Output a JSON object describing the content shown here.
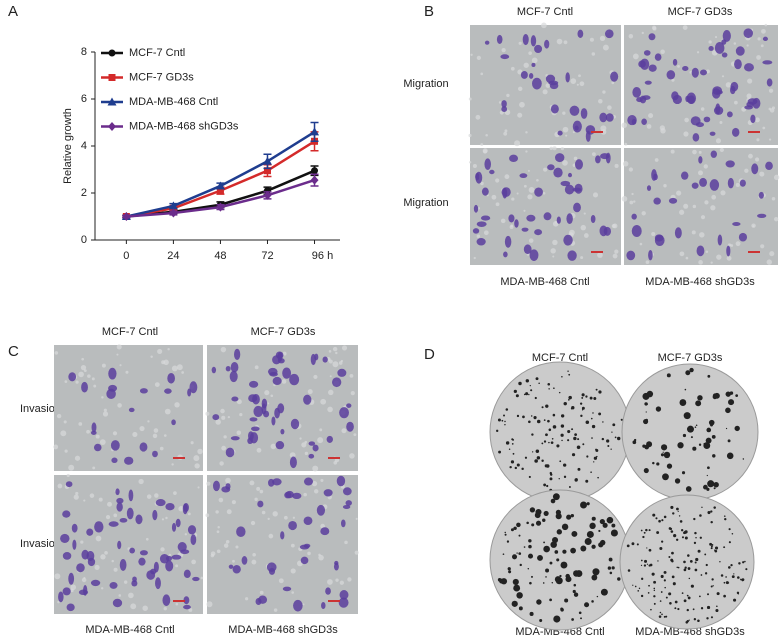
{
  "chart_data": {
    "type": "line",
    "ylabel": "Relative growth",
    "x": [
      0,
      24,
      48,
      72,
      96
    ],
    "xlim": [
      -16,
      109
    ],
    "xticks": [
      0,
      24,
      48,
      72,
      {
        "value": 96,
        "label": "96 h"
      }
    ],
    "ylim": [
      0,
      8
    ],
    "yticks": [
      0,
      2,
      4,
      6,
      8
    ],
    "legend": "upper left",
    "series": [
      {
        "name": "MCF-7 Cntl",
        "color": "#111111",
        "marker": "circle",
        "values": [
          1.0,
          1.2,
          1.5,
          2.1,
          2.95
        ],
        "errors": [
          0.05,
          0.08,
          0.12,
          0.15,
          0.2
        ]
      },
      {
        "name": "MCF-7 GD3s",
        "color": "#d42a2a",
        "marker": "square",
        "values": [
          1.0,
          1.35,
          2.1,
          2.95,
          4.2
        ],
        "errors": [
          0.05,
          0.1,
          0.15,
          0.25,
          0.4
        ]
      },
      {
        "name": "MDA-MB-468 Cntl",
        "color": "#1f3d8f",
        "marker": "triangle",
        "values": [
          1.0,
          1.45,
          2.3,
          3.35,
          4.6
        ],
        "errors": [
          0.05,
          0.1,
          0.12,
          0.3,
          0.4
        ]
      },
      {
        "name": "MDA-MB-468 shGD3s",
        "color": "#6b2c8c",
        "marker": "diamond",
        "values": [
          1.0,
          1.15,
          1.4,
          1.9,
          2.55
        ],
        "errors": [
          0.05,
          0.08,
          0.1,
          0.15,
          0.25
        ]
      }
    ]
  },
  "panel_labels": [
    "A",
    "B",
    "C",
    "D"
  ],
  "panel_b": {
    "columns": [
      "MCF-7 Cntl",
      "MCF-7 GD3s"
    ],
    "rows": [
      "Migration",
      "Migration"
    ],
    "footer": [
      "MDA-MB-468 Cntl",
      "MDA-MB-468 shGD3s"
    ]
  },
  "panel_c": {
    "columns": [
      "MCF-7 Cntl",
      "MCF-7 GD3s"
    ],
    "rows": [
      "Invasion",
      "Invasion"
    ],
    "footer": [
      "MDA-MB-468 Cntl",
      "MDA-MB-468 shGD3s"
    ]
  },
  "panel_d": {
    "columns": [
      "MCF-7 Cntl",
      "MCF-7 GD3s"
    ],
    "footer": [
      "MDA-MB-468 Cntl",
      "MDA-MB-468 shGD3s"
    ]
  }
}
